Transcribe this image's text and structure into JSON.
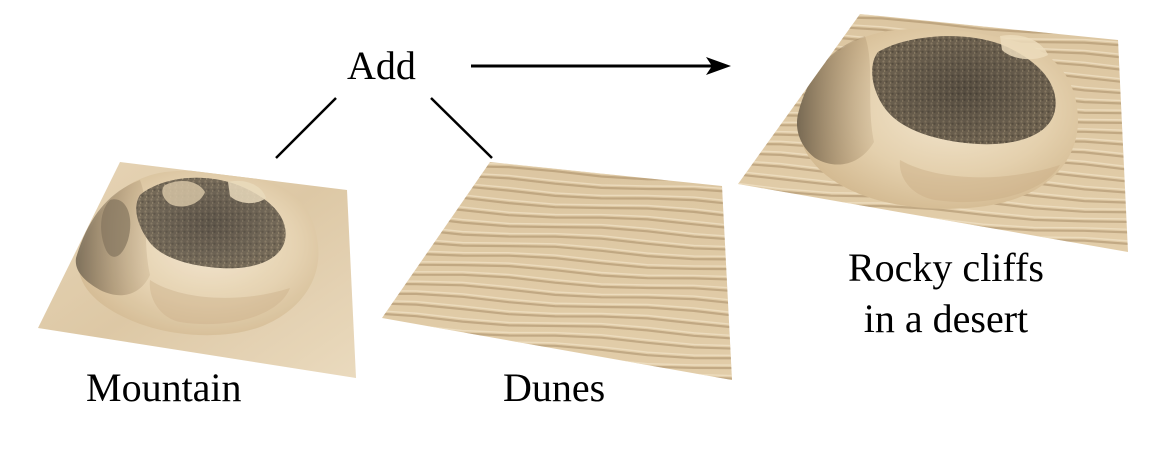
{
  "operation": {
    "label": "Add"
  },
  "inputs": [
    {
      "label": "Mountain",
      "kind": "mountain-terrain"
    },
    {
      "label": "Dunes",
      "kind": "dune-terrain"
    }
  ],
  "result": {
    "line1": "Rocky cliffs",
    "line2": "in a desert",
    "kind": "combined-terrain"
  },
  "colors": {
    "sand_light": "#ecdcc0",
    "sand_mid": "#d6be98",
    "sand_dark": "#a88c66",
    "rock_dark": "#5b5246",
    "rock_shadow": "#3f382f",
    "connector": "#000000"
  }
}
